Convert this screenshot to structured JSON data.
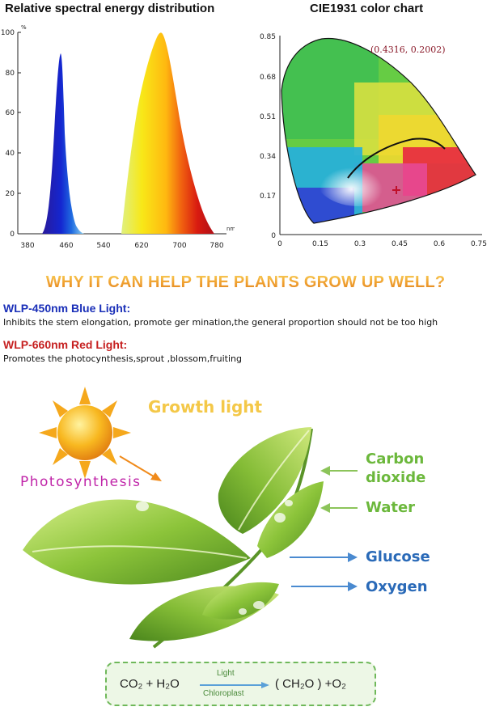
{
  "spectral_chart": {
    "title": "Relative spectral energy distribution",
    "y_unit": "%",
    "x_unit": "nm",
    "y_ticks": [
      "100",
      "80",
      "60",
      "40",
      "20",
      "0"
    ],
    "x_ticks": [
      "380",
      "460",
      "540",
      "620",
      "700",
      "780"
    ]
  },
  "cie_chart": {
    "title": "CIE1931 color chart",
    "coordinate": "(0.4316, 0.2002)",
    "y_ticks": [
      "0.85",
      "0.68",
      "0.51",
      "0.34",
      "0.17",
      "0"
    ],
    "x_ticks": [
      "0",
      "0.15",
      "0.3",
      "0.45",
      "0.6",
      "0.75"
    ]
  },
  "headline": "WHY IT CAN HELP THE PLANTS GROW UP WELL?",
  "blue_light": {
    "title": "WLP-450nm Blue Light:",
    "description": "Inhibits the stem elongation, promote ger mination,the general proportion should not be too high",
    "color": "#1a2fb8"
  },
  "red_light": {
    "title": "WLP-660nm Red Light:",
    "description": "Promotes the photocynthesis,sprout ,blossom,fruiting",
    "color": "#c62020"
  },
  "illustration": {
    "growth_light": "Growth light",
    "photosynthesis": "Photosynthesis",
    "carbon_line1": "Carbon",
    "carbon_line2": "dioxide",
    "water": "Water",
    "glucose": "Glucose",
    "oxygen": "Oxygen"
  },
  "equation": {
    "reactants": "CO₂ + H₂O",
    "condition_top": "Light",
    "condition_bottom": "Chloroplast",
    "products": "( CH₂O ) +O₂"
  }
}
